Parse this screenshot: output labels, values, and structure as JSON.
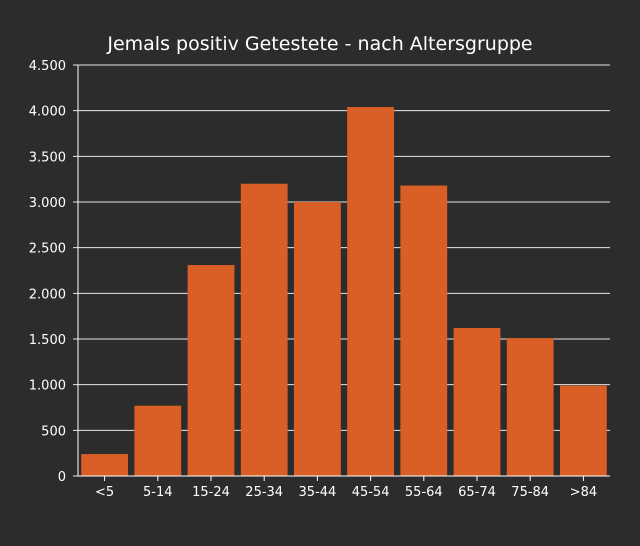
{
  "colors": {
    "background": "#2c2c2c",
    "bar": "#d95f26",
    "text": "#ffffff",
    "grid": "#e6e6e6"
  },
  "chart_data": {
    "type": "bar",
    "title": "Jemals positiv Getestete - nach Altersgruppe",
    "xlabel": "",
    "ylabel": "",
    "categories": [
      "<5",
      "5-14",
      "15-24",
      "25-34",
      "35-44",
      "45-54",
      "55-64",
      "65-74",
      "75-84",
      ">84"
    ],
    "values": [
      240,
      770,
      2310,
      3200,
      3000,
      4040,
      3180,
      1620,
      1510,
      990
    ],
    "ylim": [
      0,
      4500
    ],
    "yticks": [
      0,
      500,
      1000,
      1500,
      2000,
      2500,
      3000,
      3500,
      4000,
      4500
    ],
    "ytick_labels": [
      "0",
      "500",
      "1.000",
      "1.500",
      "2.000",
      "2.500",
      "3.000",
      "3.500",
      "4.000",
      "4.500"
    ],
    "grid": true,
    "legend": "none"
  }
}
